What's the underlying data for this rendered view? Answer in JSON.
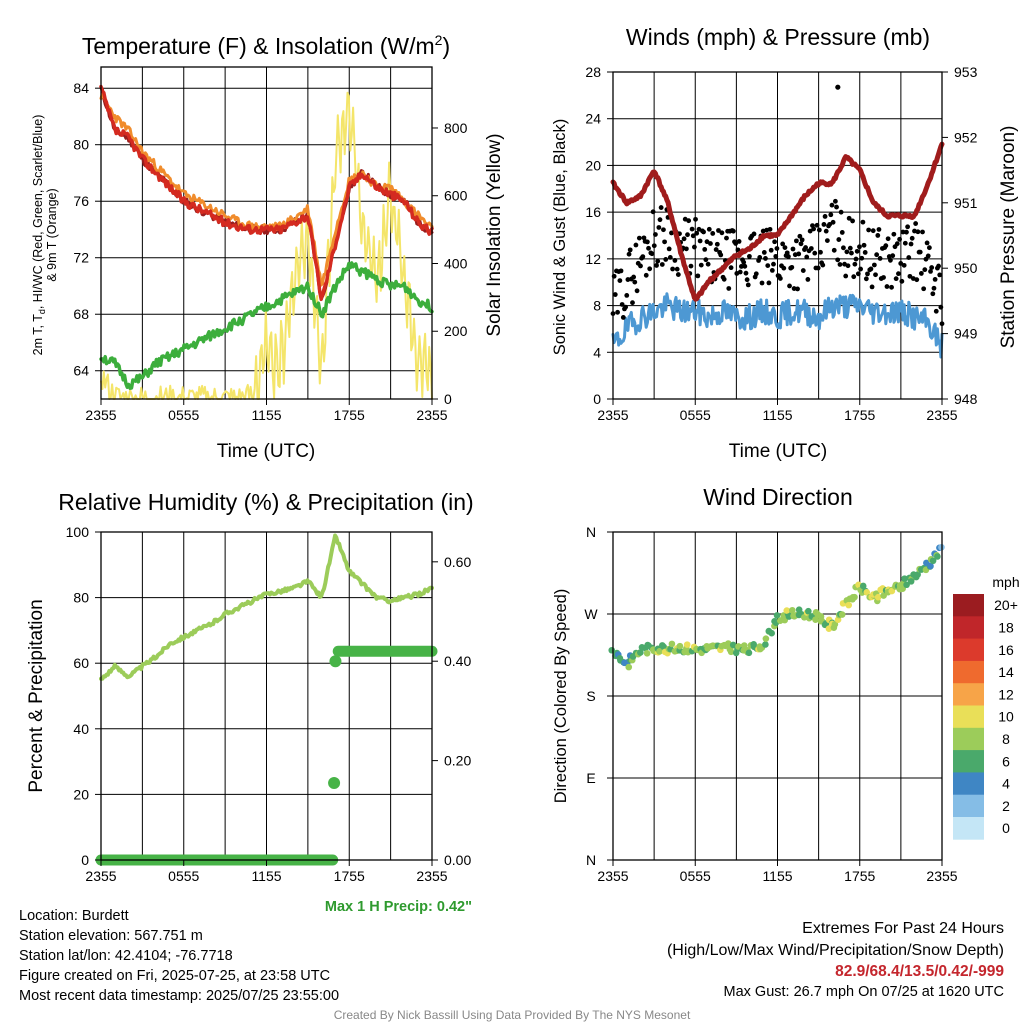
{
  "colors": {
    "temp": "#d42a20",
    "heat": "#f08c2c",
    "chill": "#981e1e",
    "dew": "#3cae3c",
    "solar": "#f4e56a",
    "wind": "#4d98d3",
    "gust": "#000000",
    "pressure": "#a01c1c",
    "rh": "#9ccc5a",
    "precip": "#47b347",
    "precip_label": "#2e9a2e",
    "extremes": "#c4262d"
  },
  "time_ticks": [
    "2355",
    "0555",
    "1155",
    "1755",
    "2355"
  ],
  "panels": {
    "temp": {
      "title": "Temperature (F) & Insolation (W/m",
      "title_sup": "2",
      "title_close": ")",
      "ylabel_line1": "2m T, T",
      "ylabel_sub": "d",
      "ylabel_line1b": ", HI/WC (Red, Green, Scarlet/Blue)",
      "ylabel_line2": "& 9m T (Orange)",
      "y2label": "Solar Insolation (Yellow)",
      "xlabel": "Time (UTC)",
      "yticks": [
        "64",
        "68",
        "72",
        "76",
        "80",
        "84"
      ],
      "y2ticks": [
        "0",
        "200",
        "400",
        "600",
        "800"
      ]
    },
    "wind": {
      "title": "Winds (mph) & Pressure (mb)",
      "ylabel": "Sonic Wind & Gust (Blue, Black)",
      "y2label": "Station Pressure (Maroon)",
      "xlabel": "Time (UTC)",
      "yticks": [
        "0",
        "4",
        "8",
        "12",
        "16",
        "20",
        "24",
        "28"
      ],
      "y2ticks": [
        "948",
        "949",
        "950",
        "951",
        "952",
        "953"
      ]
    },
    "rh": {
      "title": "Relative Humidity (%) & Precipitation (in)",
      "ylabel": "Percent & Precipitation",
      "yticks": [
        "0",
        "20",
        "40",
        "60",
        "80",
        "100"
      ],
      "y2ticks": [
        "0.00",
        "0.20",
        "0.40",
        "0.60"
      ],
      "precip_note": "Max 1 H Precip: 0.42\""
    },
    "dir": {
      "title": "Wind Direction",
      "ylabel": "Direction (Colored By Speed)",
      "yticks": [
        "N",
        "E",
        "S",
        "W",
        "N"
      ],
      "legend_title": "mph",
      "legend_labels": [
        "20+",
        "18",
        "16",
        "14",
        "12",
        "10",
        "8",
        "6",
        "4",
        "2",
        "0"
      ],
      "legend_colors": [
        "#9b1c20",
        "#c0262a",
        "#dc3a2c",
        "#ef6a2e",
        "#f7a448",
        "#e9df58",
        "#9ccc5a",
        "#4aa96b",
        "#3f86c4",
        "#85bde6",
        "#c4e6f6"
      ]
    }
  },
  "station_info": {
    "location": "Location: Burdett",
    "elevation": "Station elevation: 567.751 m",
    "latlon": "Station lat/lon: 42.4104; -76.7718",
    "created": "Figure created on Fri, 2025-07-25, at 23:58 UTC",
    "recent": "Most recent data timestamp: 2025/07/25 23:55:00"
  },
  "extremes": {
    "title": "Extremes For Past 24 Hours",
    "subtitle": "(High/Low/Max Wind/Precipitation/Snow Depth)",
    "values": "82.9/68.4/13.5/0.42/-999",
    "max_gust": "Max Gust: 26.7 mph On 07/25 at 1620 UTC"
  },
  "credit": "Created By Nick Bassill Using Data Provided By The NYS Mesonet",
  "chart_data": [
    {
      "type": "line",
      "title": "Temperature (F) & Insolation (W/m2)",
      "xlabel": "Time (UTC)",
      "x_hours": [
        0,
        1,
        2,
        3,
        4,
        5,
        6,
        7,
        8,
        9,
        10,
        11,
        12,
        13,
        14,
        15,
        16,
        17,
        18,
        19,
        20,
        21,
        22,
        23,
        24
      ],
      "ylim": [
        62,
        85.5
      ],
      "y2lim": [
        0,
        980
      ],
      "series": [
        {
          "name": "2m T",
          "values": [
            84,
            81,
            80.5,
            79,
            78,
            77,
            76,
            75.5,
            75,
            74.5,
            74.2,
            74,
            74,
            74,
            74.5,
            75,
            69,
            73,
            77,
            78,
            77,
            76.5,
            76,
            74.5,
            73.8
          ]
        },
        {
          "name": "9m T",
          "values": [
            83.5,
            82,
            81,
            79.5,
            78.5,
            77.5,
            76.5,
            76,
            75.5,
            75,
            74.5,
            74.2,
            74.2,
            74.2,
            74.8,
            75.5,
            70,
            74,
            77.5,
            78,
            77,
            77,
            76,
            75,
            74
          ]
        },
        {
          "name": "Td",
          "values": [
            65,
            64.5,
            63,
            63.5,
            64.5,
            65,
            65.5,
            66,
            66.5,
            67,
            67.5,
            68,
            68.5,
            69,
            69.5,
            70,
            68,
            70,
            71.5,
            71,
            70.5,
            70,
            70,
            69,
            68.5
          ]
        },
        {
          "name": "Solar",
          "axis": "y2",
          "values": [
            70,
            5,
            0,
            0,
            0,
            0,
            0,
            0,
            0,
            0,
            0,
            10,
            150,
            100,
            350,
            500,
            80,
            700,
            870,
            500,
            350,
            600,
            350,
            100,
            60
          ]
        }
      ]
    },
    {
      "type": "line",
      "title": "Winds (mph) & Pressure (mb)",
      "xlabel": "Time (UTC)",
      "ylim": [
        0,
        28
      ],
      "y2lim": [
        948,
        953
      ],
      "series": [
        {
          "name": "Sonic Wind",
          "values": [
            4.5,
            6,
            7,
            7.5,
            8,
            7.5,
            7.5,
            7,
            7.5,
            7,
            7,
            7.5,
            7,
            7.5,
            7.5,
            7,
            8,
            8,
            8,
            7.5,
            7.5,
            7.5,
            7,
            6.5,
            4.5
          ]
        },
        {
          "name": "Gust",
          "values": [
            8,
            10,
            12,
            14,
            14,
            13,
            13,
            12,
            12,
            12,
            12,
            12,
            12,
            12,
            12,
            12.5,
            15,
            13,
            13,
            12,
            12,
            12,
            13,
            11,
            9
          ]
        },
        {
          "name": "Pressure",
          "axis": "y2",
          "values": [
            951.3,
            951,
            951.1,
            951.5,
            951,
            950.2,
            949.5,
            949.8,
            950,
            950.2,
            950.3,
            950.5,
            950.5,
            950.8,
            951.1,
            951.3,
            951.3,
            951.7,
            951.5,
            951,
            950.8,
            950.8,
            950.8,
            951.3,
            951.9
          ]
        }
      ],
      "max_gust": 26.7
    },
    {
      "type": "line",
      "title": "Relative Humidity (%) & Precipitation (in)",
      "ylim": [
        0,
        100
      ],
      "y2lim": [
        0,
        0.66
      ],
      "series": [
        {
          "name": "Relative Humidity",
          "values": [
            55,
            59,
            56,
            59,
            62,
            66,
            68,
            70,
            72,
            75,
            77,
            79,
            81,
            82,
            83,
            85,
            80,
            99,
            88,
            84,
            80,
            79,
            80,
            81,
            83
          ]
        },
        {
          "name": "Precipitation",
          "axis": "y2",
          "values": [
            0,
            0,
            0,
            0,
            0,
            0,
            0,
            0,
            0,
            0,
            0,
            0,
            0,
            0,
            0,
            0,
            0,
            0.42,
            0.42,
            0.42,
            0.42,
            0.42,
            0.42,
            0.42,
            0.42
          ]
        }
      ]
    },
    {
      "type": "scatter",
      "title": "Wind Direction",
      "ylabel": "Direction (Colored By Speed)",
      "ylim": [
        0,
        360
      ],
      "series": [
        {
          "name": "Direction",
          "values": [
            230,
            215,
            230,
            233,
            232,
            233,
            231,
            232,
            233,
            232,
            230,
            237,
            266,
            270,
            270,
            268,
            255,
            280,
            300,
            288,
            295,
            300,
            312,
            325,
            340
          ]
        }
      ]
    }
  ]
}
